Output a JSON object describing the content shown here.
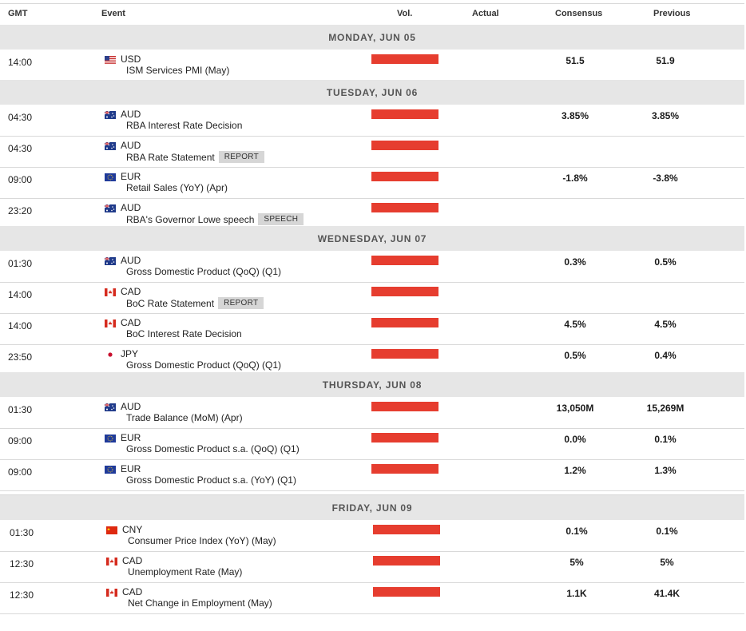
{
  "header": {
    "gmt": "GMT",
    "event": "Event",
    "vol": "Vol.",
    "actual": "Actual",
    "consensus": "Consensus",
    "previous": "Previous"
  },
  "days": [
    {
      "label": "MONDAY, JUN 05",
      "rows": [
        {
          "time": "14:00",
          "flag": "us",
          "currency": "USD",
          "event": "ISM Services PMI (May)",
          "tag": "",
          "consensus": "51.5",
          "previous": "51.9"
        }
      ]
    },
    {
      "label": "TUESDAY, JUN 06",
      "rows": [
        {
          "time": "04:30",
          "flag": "au",
          "currency": "AUD",
          "event": "RBA Interest Rate Decision",
          "tag": "",
          "consensus": "3.85%",
          "previous": "3.85%"
        },
        {
          "time": "04:30",
          "flag": "au",
          "currency": "AUD",
          "event": "RBA Rate Statement",
          "tag": "REPORT",
          "consensus": "",
          "previous": ""
        },
        {
          "time": "09:00",
          "flag": "eu",
          "currency": "EUR",
          "event": "Retail Sales (YoY) (Apr)",
          "tag": "",
          "consensus": "-1.8%",
          "previous": "-3.8%"
        },
        {
          "time": "23:20",
          "flag": "au",
          "currency": "AUD",
          "event": "RBA's Governor Lowe speech",
          "tag": "SPEECH",
          "consensus": "",
          "previous": ""
        }
      ]
    },
    {
      "label": "WEDNESDAY, JUN 07",
      "rows": [
        {
          "time": "01:30",
          "flag": "au",
          "currency": "AUD",
          "event": "Gross Domestic Product (QoQ) (Q1)",
          "tag": "",
          "consensus": "0.3%",
          "previous": "0.5%"
        },
        {
          "time": "14:00",
          "flag": "ca",
          "currency": "CAD",
          "event": "BoC Rate Statement",
          "tag": "REPORT",
          "consensus": "",
          "previous": ""
        },
        {
          "time": "14:00",
          "flag": "ca",
          "currency": "CAD",
          "event": "BoC Interest Rate Decision",
          "tag": "",
          "consensus": "4.5%",
          "previous": "4.5%"
        },
        {
          "time": "23:50",
          "flag": "jp",
          "currency": "JPY",
          "event": "Gross Domestic Product (QoQ) (Q1)",
          "tag": "",
          "consensus": "0.5%",
          "previous": "0.4%"
        }
      ]
    },
    {
      "label": "THURSDAY, JUN 08",
      "rows": [
        {
          "time": "01:30",
          "flag": "au",
          "currency": "AUD",
          "event": "Trade Balance (MoM) (Apr)",
          "tag": "",
          "consensus": "13,050M",
          "previous": "15,269M"
        },
        {
          "time": "09:00",
          "flag": "eu",
          "currency": "EUR",
          "event": "Gross Domestic Product s.a. (QoQ) (Q1)",
          "tag": "",
          "consensus": "0.0%",
          "previous": "0.1%"
        },
        {
          "time": "09:00",
          "flag": "eu",
          "currency": "EUR",
          "event": "Gross Domestic Product s.a. (YoY) (Q1)",
          "tag": "",
          "consensus": "1.2%",
          "previous": "1.3%"
        }
      ]
    },
    {
      "label": "FRIDAY, JUN 09",
      "rows": [
        {
          "time": "01:30",
          "flag": "cn",
          "currency": "CNY",
          "event": "Consumer Price Index (YoY) (May)",
          "tag": "",
          "consensus": "0.1%",
          "previous": "0.1%"
        },
        {
          "time": "12:30",
          "flag": "ca",
          "currency": "CAD",
          "event": "Unemployment Rate (May)",
          "tag": "",
          "consensus": "5%",
          "previous": "5%"
        },
        {
          "time": "12:30",
          "flag": "ca",
          "currency": "CAD",
          "event": "Net Change in Employment (May)",
          "tag": "",
          "consensus": "1.1K",
          "previous": "41.4K"
        }
      ]
    }
  ],
  "colors": {
    "volume_bar": "#e63d2f",
    "day_header_bg": "#e6e6e6"
  }
}
